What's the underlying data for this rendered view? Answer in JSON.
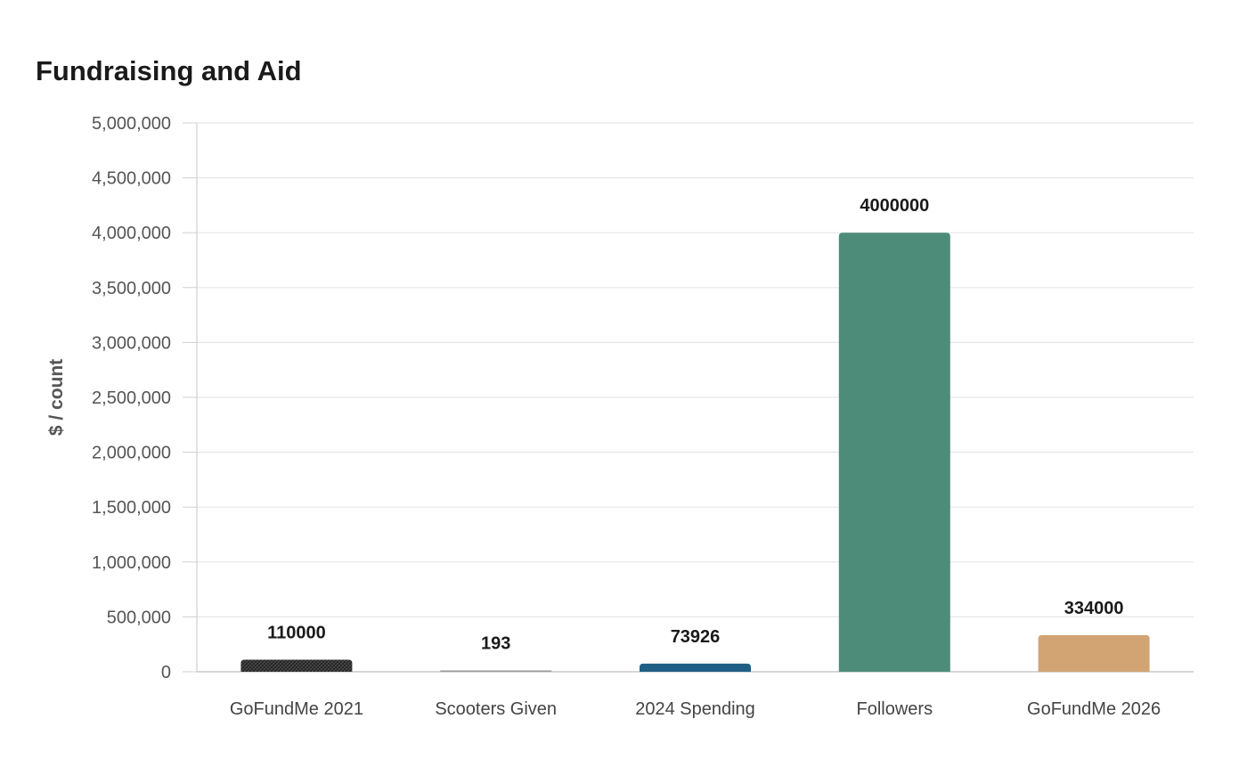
{
  "chart_data": {
    "type": "bar",
    "title": "Fundraising and Aid",
    "xlabel": "",
    "ylabel": "$ / count",
    "ylim": [
      0,
      5000000
    ],
    "yticks": [
      0,
      500000,
      1000000,
      1500000,
      2000000,
      2500000,
      3000000,
      3500000,
      4000000,
      4500000,
      5000000
    ],
    "ytick_labels": [
      "0",
      "500,000",
      "1,000,000",
      "1,500,000",
      "2,000,000",
      "2,500,000",
      "3,000,000",
      "3,500,000",
      "4,000,000",
      "4,500,000",
      "5,000,000"
    ],
    "grid": true,
    "categories": [
      "GoFundMe 2021",
      "Scooters Given",
      "2024 Spending",
      "Followers",
      "GoFundMe 2026"
    ],
    "values": [
      110000,
      193,
      73926,
      4000000,
      334000
    ],
    "data_labels": [
      "110000",
      "193",
      "73926",
      "4000000",
      "334000"
    ],
    "colors": [
      "#2e2e2e",
      "#9a9a9a",
      "#1f5f86",
      "#4e8c7a",
      "#d2a473"
    ],
    "first_bar_pattern": "crosshatch"
  }
}
